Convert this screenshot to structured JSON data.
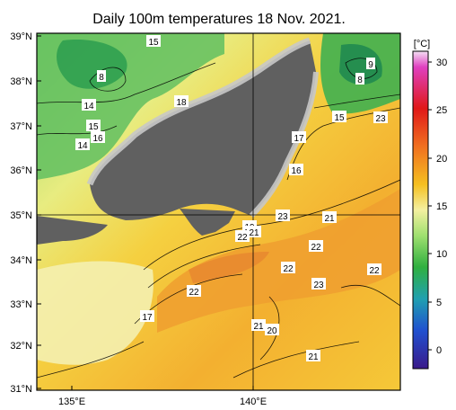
{
  "title": "Daily 100m temperatures 18 Nov. 2021.",
  "colorbar": {
    "unit": "[°C]",
    "ticks": [
      "30",
      "25",
      "20",
      "15",
      "10",
      "5",
      "0"
    ],
    "colors_top_to_bottom": [
      "#f2d9f2",
      "#e02020",
      "#f08020",
      "#f5c020",
      "#f2f0a0",
      "#60c060",
      "#20a0a0",
      "#2040c0",
      "#3a1a8a"
    ]
  },
  "axes": {
    "lat_labels": [
      "39°N",
      "38°N",
      "37°N",
      "36°N",
      "35°N",
      "34°N",
      "33°N",
      "32°N",
      "31°N"
    ],
    "lon_labels": [
      "135°E",
      "140°E"
    ]
  },
  "contour_labels": [
    {
      "text": "15"
    },
    {
      "text": "8"
    },
    {
      "text": "14"
    },
    {
      "text": "15"
    },
    {
      "text": "14"
    },
    {
      "text": "16"
    },
    {
      "text": "18"
    },
    {
      "text": "9"
    },
    {
      "text": "8"
    },
    {
      "text": "15"
    },
    {
      "text": "23"
    },
    {
      "text": "17"
    },
    {
      "text": "16"
    },
    {
      "text": "23"
    },
    {
      "text": "21"
    },
    {
      "text": "19"
    },
    {
      "text": "21"
    },
    {
      "text": "22"
    },
    {
      "text": "22"
    },
    {
      "text": "22"
    },
    {
      "text": "22"
    },
    {
      "text": "23"
    },
    {
      "text": "22"
    },
    {
      "text": "17"
    },
    {
      "text": "21"
    },
    {
      "text": "20"
    },
    {
      "text": "21"
    }
  ],
  "colors": {
    "land": "#606060",
    "coast_shelf": "#c8c8c8",
    "grid": "#000000"
  }
}
